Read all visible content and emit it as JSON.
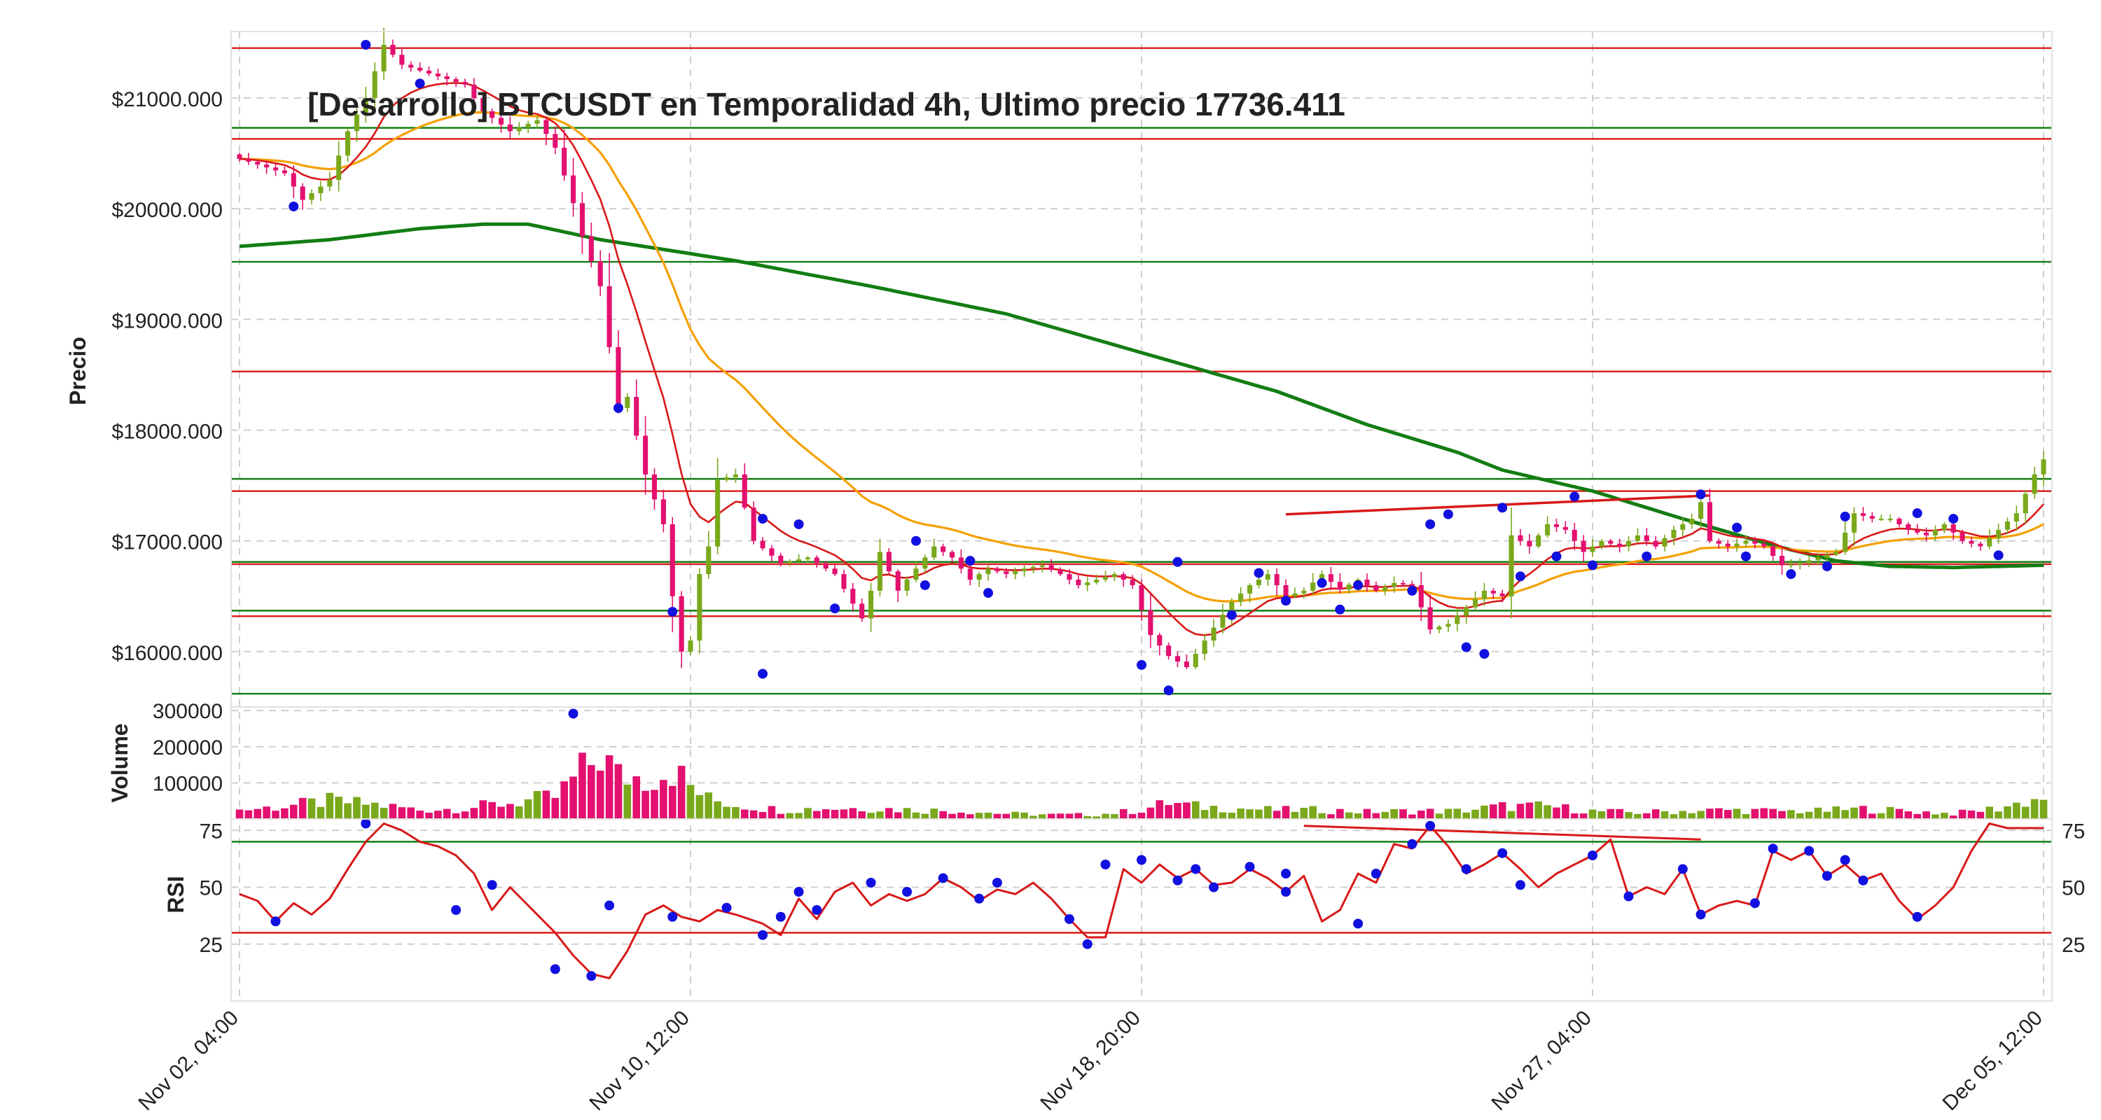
{
  "chart_data": {
    "type": "candlestick",
    "title": "[Desarrollo] BTCUSDT en Temporalidad 4h, Ultimo precio 17736.411",
    "colors": {
      "up": "#7aa81b",
      "down": "#e3106f",
      "ema_fast": "#d81818",
      "ema_mid": "#f5a000",
      "ema_slow": "#137d13",
      "support": "#137d13",
      "resistance": "#d81818",
      "pivot": "#1010e0",
      "rsi": "#d81818"
    },
    "price_panel": {
      "ylabel": "Precio",
      "ylim": [
        15500,
        21600
      ],
      "yticks": [
        16000,
        17000,
        18000,
        19000,
        20000,
        21000
      ],
      "ytick_labels": [
        "$16000.000",
        "$17000.000",
        "$18000.000",
        "$19000.000",
        "$20000.000",
        "$21000.000"
      ],
      "horizontal_lines": [
        {
          "kind": "resistance",
          "value": 21450
        },
        {
          "kind": "support",
          "value": 20730
        },
        {
          "kind": "resistance",
          "value": 20630
        },
        {
          "kind": "support",
          "value": 19520
        },
        {
          "kind": "resistance",
          "value": 18530
        },
        {
          "kind": "support",
          "value": 17560
        },
        {
          "kind": "resistance",
          "value": 17450
        },
        {
          "kind": "support",
          "value": 16810
        },
        {
          "kind": "resistance",
          "value": 16790
        },
        {
          "kind": "support",
          "value": 16370
        },
        {
          "kind": "resistance",
          "value": 16320
        },
        {
          "kind": "support",
          "value": 15620
        }
      ],
      "trend_lines": [
        [
          [
            116,
            17240
          ],
          [
            163,
            17410
          ]
        ]
      ]
    },
    "volume_panel": {
      "ylabel": "Volume",
      "ylim": [
        0,
        310000
      ],
      "yticks": [
        100000,
        200000,
        300000
      ],
      "ytick_labels": [
        "100000",
        "200000",
        "300000"
      ]
    },
    "rsi_panel": {
      "ylabel": "RSI",
      "ylim": [
        0,
        80
      ],
      "yticks": [
        25,
        50,
        75
      ],
      "ytick_labels": [
        "25",
        "50",
        "75"
      ],
      "overbought": 70,
      "oversold": 30,
      "trend_lines": [
        [
          [
            118,
            77
          ],
          [
            162,
            71
          ]
        ]
      ]
    },
    "x": {
      "count": 201,
      "tick_index": [
        0,
        50,
        100,
        150,
        200
      ],
      "tick_labels": [
        "Nov 02, 04:00",
        "Nov 10, 12:00",
        "Nov 18, 20:00",
        "Nov 27, 04:00",
        "Dec 05, 12:00"
      ]
    },
    "close_keys": [
      [
        0,
        20450
      ],
      [
        5,
        20320
      ],
      [
        7,
        20080
      ],
      [
        10,
        20260
      ],
      [
        12,
        20700
      ],
      [
        14,
        21000
      ],
      [
        16,
        21480
      ],
      [
        18,
        21300
      ],
      [
        21,
        21220
      ],
      [
        25,
        21120
      ],
      [
        27,
        20880
      ],
      [
        30,
        20700
      ],
      [
        33,
        20800
      ],
      [
        35,
        20550
      ],
      [
        37,
        20050
      ],
      [
        38,
        19750
      ],
      [
        40,
        19300
      ],
      [
        42,
        18200
      ],
      [
        43,
        18300
      ],
      [
        45,
        17600
      ],
      [
        47,
        17150
      ],
      [
        48,
        16500
      ],
      [
        49,
        16000
      ],
      [
        50,
        16100
      ],
      [
        51,
        16700
      ],
      [
        52,
        16950
      ],
      [
        53,
        17550
      ],
      [
        55,
        17600
      ],
      [
        57,
        17000
      ],
      [
        60,
        16800
      ],
      [
        63,
        16850
      ],
      [
        66,
        16700
      ],
      [
        69,
        16300
      ],
      [
        70,
        16550
      ],
      [
        71,
        16900
      ],
      [
        73,
        16550
      ],
      [
        75,
        16750
      ],
      [
        77,
        16950
      ],
      [
        79,
        16850
      ],
      [
        81,
        16650
      ],
      [
        83,
        16750
      ],
      [
        85,
        16700
      ],
      [
        87,
        16750
      ],
      [
        89,
        16780
      ],
      [
        91,
        16700
      ],
      [
        93,
        16600
      ],
      [
        95,
        16650
      ],
      [
        97,
        16700
      ],
      [
        99,
        16600
      ],
      [
        101,
        16150
      ],
      [
        103,
        15960
      ],
      [
        105,
        15860
      ],
      [
        107,
        16100
      ],
      [
        110,
        16450
      ],
      [
        112,
        16600
      ],
      [
        114,
        16700
      ],
      [
        116,
        16500
      ],
      [
        118,
        16550
      ],
      [
        120,
        16700
      ],
      [
        122,
        16560
      ],
      [
        124,
        16650
      ],
      [
        126,
        16550
      ],
      [
        128,
        16620
      ],
      [
        130,
        16600
      ],
      [
        132,
        16200
      ],
      [
        134,
        16250
      ],
      [
        136,
        16400
      ],
      [
        138,
        16550
      ],
      [
        140,
        16500
      ],
      [
        141,
        17050
      ],
      [
        143,
        16950
      ],
      [
        145,
        17150
      ],
      [
        147,
        17100
      ],
      [
        149,
        16900
      ],
      [
        151,
        17000
      ],
      [
        153,
        16950
      ],
      [
        155,
        17050
      ],
      [
        157,
        16950
      ],
      [
        159,
        17100
      ],
      [
        161,
        17200
      ],
      [
        162,
        17350
      ],
      [
        163,
        17000
      ],
      [
        165,
        16950
      ],
      [
        167,
        17000
      ],
      [
        169,
        16950
      ],
      [
        171,
        16780
      ],
      [
        173,
        16800
      ],
      [
        175,
        16850
      ],
      [
        177,
        16900
      ],
      [
        179,
        17250
      ],
      [
        181,
        17200
      ],
      [
        183,
        17200
      ],
      [
        185,
        17100
      ],
      [
        187,
        17050
      ],
      [
        189,
        17150
      ],
      [
        191,
        17000
      ],
      [
        193,
        16950
      ],
      [
        195,
        17100
      ],
      [
        197,
        17250
      ],
      [
        199,
        17600
      ],
      [
        200,
        17736
      ]
    ],
    "ema_slow_keys": [
      [
        0,
        19660
      ],
      [
        10,
        19720
      ],
      [
        20,
        19820
      ],
      [
        27,
        19860
      ],
      [
        32,
        19860
      ],
      [
        40,
        19720
      ],
      [
        55,
        19530
      ],
      [
        70,
        19300
      ],
      [
        85,
        19050
      ],
      [
        100,
        18700
      ],
      [
        115,
        18350
      ],
      [
        125,
        18050
      ],
      [
        135,
        17800
      ],
      [
        140,
        17640
      ],
      [
        150,
        17450
      ],
      [
        160,
        17200
      ],
      [
        170,
        16960
      ],
      [
        177,
        16820
      ],
      [
        183,
        16770
      ],
      [
        190,
        16760
      ],
      [
        200,
        16780
      ]
    ],
    "rsi_keys": [
      [
        0,
        47
      ],
      [
        2,
        44
      ],
      [
        4,
        35
      ],
      [
        6,
        43
      ],
      [
        8,
        38
      ],
      [
        10,
        45
      ],
      [
        12,
        58
      ],
      [
        14,
        70
      ],
      [
        16,
        78
      ],
      [
        18,
        75
      ],
      [
        20,
        70
      ],
      [
        22,
        68
      ],
      [
        24,
        64
      ],
      [
        26,
        56
      ],
      [
        28,
        40
      ],
      [
        30,
        50
      ],
      [
        32,
        42
      ],
      [
        35,
        30
      ],
      [
        37,
        20
      ],
      [
        39,
        12
      ],
      [
        41,
        10
      ],
      [
        43,
        22
      ],
      [
        45,
        38
      ],
      [
        47,
        42
      ],
      [
        49,
        37
      ],
      [
        51,
        35
      ],
      [
        53,
        40
      ],
      [
        55,
        38
      ],
      [
        58,
        34
      ],
      [
        60,
        29
      ],
      [
        62,
        45
      ],
      [
        64,
        36
      ],
      [
        66,
        48
      ],
      [
        68,
        52
      ],
      [
        70,
        42
      ],
      [
        72,
        47
      ],
      [
        74,
        44
      ],
      [
        76,
        47
      ],
      [
        78,
        54
      ],
      [
        80,
        50
      ],
      [
        82,
        44
      ],
      [
        84,
        49
      ],
      [
        86,
        47
      ],
      [
        88,
        52
      ],
      [
        90,
        45
      ],
      [
        92,
        36
      ],
      [
        94,
        28
      ],
      [
        96,
        28
      ],
      [
        98,
        58
      ],
      [
        100,
        52
      ],
      [
        102,
        60
      ],
      [
        104,
        54
      ],
      [
        106,
        58
      ],
      [
        108,
        51
      ],
      [
        110,
        52
      ],
      [
        112,
        58
      ],
      [
        114,
        54
      ],
      [
        116,
        48
      ],
      [
        118,
        55
      ],
      [
        120,
        35
      ],
      [
        122,
        40
      ],
      [
        124,
        56
      ],
      [
        126,
        52
      ],
      [
        128,
        69
      ],
      [
        130,
        67
      ],
      [
        132,
        77
      ],
      [
        134,
        68
      ],
      [
        136,
        56
      ],
      [
        138,
        60
      ],
      [
        140,
        65
      ],
      [
        142,
        58
      ],
      [
        144,
        50
      ],
      [
        146,
        56
      ],
      [
        148,
        60
      ],
      [
        150,
        64
      ],
      [
        152,
        71
      ],
      [
        154,
        46
      ],
      [
        156,
        50
      ],
      [
        158,
        47
      ],
      [
        160,
        58
      ],
      [
        162,
        38
      ],
      [
        164,
        42
      ],
      [
        166,
        44
      ],
      [
        168,
        42
      ],
      [
        170,
        66
      ],
      [
        172,
        62
      ],
      [
        174,
        66
      ],
      [
        176,
        55
      ],
      [
        178,
        60
      ],
      [
        180,
        53
      ],
      [
        182,
        56
      ],
      [
        184,
        44
      ],
      [
        186,
        36
      ],
      [
        188,
        42
      ],
      [
        190,
        50
      ],
      [
        192,
        66
      ],
      [
        194,
        78
      ],
      [
        196,
        76
      ],
      [
        200,
        76
      ]
    ],
    "volume_keys": [
      [
        0,
        25000
      ],
      [
        5,
        35000
      ],
      [
        10,
        50000
      ],
      [
        15,
        40000
      ],
      [
        20,
        25000
      ],
      [
        25,
        30000
      ],
      [
        30,
        45000
      ],
      [
        35,
        60000
      ],
      [
        40,
        180000
      ],
      [
        42,
        120000
      ],
      [
        45,
        115000
      ],
      [
        48,
        140000
      ],
      [
        50,
        90000
      ],
      [
        52,
        55000
      ],
      [
        55,
        40000
      ],
      [
        60,
        25000
      ],
      [
        65,
        30000
      ],
      [
        70,
        30000
      ],
      [
        75,
        25000
      ],
      [
        80,
        22000
      ],
      [
        85,
        15000
      ],
      [
        90,
        12000
      ],
      [
        95,
        12000
      ],
      [
        100,
        25000
      ],
      [
        103,
        45000
      ],
      [
        106,
        35000
      ],
      [
        110,
        30000
      ],
      [
        115,
        25000
      ],
      [
        120,
        25000
      ],
      [
        125,
        20000
      ],
      [
        130,
        22000
      ],
      [
        135,
        22000
      ],
      [
        140,
        35000
      ],
      [
        145,
        35000
      ],
      [
        150,
        22000
      ],
      [
        155,
        18000
      ],
      [
        160,
        22000
      ],
      [
        165,
        25000
      ],
      [
        170,
        22000
      ],
      [
        175,
        22000
      ],
      [
        180,
        28000
      ],
      [
        185,
        22000
      ],
      [
        190,
        15000
      ],
      [
        195,
        30000
      ],
      [
        200,
        60000
      ]
    ],
    "pivot_high": [
      [
        14,
        21480
      ],
      [
        42,
        18200
      ],
      [
        58,
        17200
      ],
      [
        62,
        17150
      ],
      [
        75,
        17000
      ],
      [
        81,
        16820
      ],
      [
        104,
        16810
      ],
      [
        113,
        16710
      ],
      [
        120,
        16620
      ],
      [
        124,
        16600
      ],
      [
        132,
        17150
      ],
      [
        134,
        17240
      ],
      [
        140,
        17300
      ],
      [
        148,
        17400
      ],
      [
        162,
        17420
      ],
      [
        166,
        17120
      ],
      [
        178,
        17220
      ],
      [
        186,
        17250
      ]
    ],
    "pivot_low": [
      [
        6,
        20020
      ],
      [
        20,
        21130
      ],
      [
        37,
        15440
      ],
      [
        48,
        16360
      ],
      [
        58,
        15800
      ],
      [
        66,
        16390
      ],
      [
        76,
        16600
      ],
      [
        83,
        16530
      ],
      [
        100,
        15880
      ],
      [
        103,
        15650
      ],
      [
        110,
        16330
      ],
      [
        116,
        16460
      ],
      [
        122,
        16380
      ],
      [
        130,
        16550
      ],
      [
        136,
        16040
      ],
      [
        138,
        15980
      ],
      [
        142,
        16680
      ],
      [
        146,
        16860
      ],
      [
        150,
        16780
      ],
      [
        156,
        16860
      ],
      [
        167,
        16860
      ],
      [
        172,
        16700
      ],
      [
        176,
        16770
      ],
      [
        190,
        17200
      ],
      [
        195,
        16870
      ]
    ],
    "rsi_pivot_high": [
      [
        14,
        78
      ],
      [
        28,
        51
      ],
      [
        41,
        42
      ],
      [
        54,
        41
      ],
      [
        62,
        48
      ],
      [
        70,
        52
      ],
      [
        74,
        48
      ],
      [
        78,
        54
      ],
      [
        84,
        52
      ],
      [
        96,
        60
      ],
      [
        100,
        62
      ],
      [
        106,
        58
      ],
      [
        112,
        59
      ],
      [
        116,
        56
      ],
      [
        126,
        56
      ],
      [
        130,
        69
      ],
      [
        132,
        77
      ],
      [
        140,
        65
      ],
      [
        150,
        64
      ],
      [
        160,
        58
      ],
      [
        170,
        67
      ],
      [
        174,
        66
      ],
      [
        178,
        62
      ],
      [
        186,
        37
      ]
    ],
    "rsi_pivot_low": [
      [
        4,
        35
      ],
      [
        24,
        40
      ],
      [
        35,
        14
      ],
      [
        39,
        11
      ],
      [
        48,
        37
      ],
      [
        58,
        29
      ],
      [
        60,
        37
      ],
      [
        64,
        40
      ],
      [
        82,
        45
      ],
      [
        92,
        36
      ],
      [
        94,
        25
      ],
      [
        104,
        53
      ],
      [
        108,
        50
      ],
      [
        116,
        48
      ],
      [
        124,
        34
      ],
      [
        136,
        58
      ],
      [
        142,
        51
      ],
      [
        154,
        46
      ],
      [
        162,
        38
      ],
      [
        168,
        43
      ],
      [
        176,
        55
      ],
      [
        180,
        53
      ]
    ]
  }
}
